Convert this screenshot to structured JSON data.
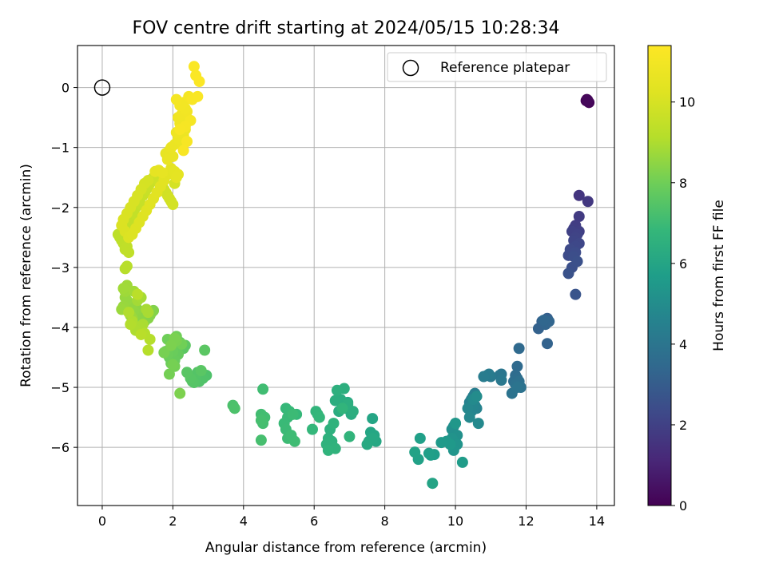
{
  "chart_data": {
    "type": "scatter",
    "title": "FOV centre drift starting at 2024/05/15 10:28:34",
    "xlabel": "Angular distance from reference (arcmin)",
    "ylabel": "Rotation from reference (arcmin)",
    "xlim": [
      -0.7,
      14.5
    ],
    "ylim": [
      -6.97,
      0.7
    ],
    "xticks": [
      0,
      2,
      4,
      6,
      8,
      10,
      12,
      14
    ],
    "xtick_labels": [
      "0",
      "2",
      "4",
      "6",
      "8",
      "10",
      "12",
      "14"
    ],
    "yticks": [
      0,
      -1,
      -2,
      -3,
      -4,
      -5,
      -6
    ],
    "ytick_labels": [
      "0",
      "−1",
      "−2",
      "−3",
      "−4",
      "−5",
      "−6"
    ],
    "grid": true,
    "colormap": "viridis",
    "colorbar": {
      "label": "Hours from first FF file",
      "range": [
        0,
        11.4
      ],
      "ticks": [
        0,
        2,
        4,
        6,
        8,
        10
      ],
      "tick_labels": [
        "0",
        "2",
        "4",
        "6",
        "8",
        "10"
      ]
    },
    "legend": {
      "position": "top-right",
      "entries": [
        "Reference platepar"
      ]
    },
    "reference_point": {
      "x": 0,
      "y": 0
    },
    "segments": [
      {
        "x": [
          13.72,
          13.78,
          13.7,
          13.76,
          13.74
        ],
        "y": [
          -0.2,
          -0.25,
          -0.22,
          -0.24,
          -0.21
        ],
        "c": [
          0.0,
          0.05,
          0.1,
          0.15,
          0.2
        ]
      },
      {
        "x": [
          13.5,
          13.75,
          13.5,
          13.4,
          13.35,
          13.5,
          13.3,
          13.45,
          13.4,
          13.35,
          13.5,
          13.4,
          13.25,
          13.2,
          13.4,
          13.35,
          13.3,
          13.45,
          13.2,
          13.4
        ],
        "y": [
          -1.8,
          -1.9,
          -2.15,
          -2.3,
          -2.35,
          -2.4,
          -2.4,
          -2.45,
          -2.5,
          -2.55,
          -2.6,
          -2.65,
          -2.7,
          -2.8,
          -2.75,
          -2.82,
          -3.0,
          -2.9,
          -3.1,
          -3.45
        ],
        "c": [
          1.6,
          1.7,
          1.8,
          1.85,
          1.9,
          1.95,
          2.0,
          2.05,
          2.1,
          2.15,
          2.2,
          2.25,
          2.3,
          2.35,
          2.4,
          2.45,
          2.5,
          2.55,
          2.6,
          2.7
        ]
      },
      {
        "x": [
          12.6,
          12.45,
          12.35,
          12.6,
          12.55,
          12.65,
          12.5
        ],
        "y": [
          -3.85,
          -3.9,
          -4.02,
          -4.27,
          -3.95,
          -3.9,
          -3.88
        ],
        "c": [
          3.1,
          3.15,
          3.2,
          3.25,
          3.3,
          3.35,
          3.4
        ]
      },
      {
        "x": [
          11.8,
          11.75,
          11.7,
          11.75,
          11.65,
          11.8,
          11.7,
          11.85,
          11.6,
          11.75,
          11.3,
          11.25,
          11.3,
          11.0,
          10.9,
          10.95,
          10.8
        ],
        "y": [
          -4.35,
          -4.65,
          -4.8,
          -4.85,
          -4.9,
          -4.9,
          -4.95,
          -5.0,
          -5.1,
          -5.0,
          -4.78,
          -4.8,
          -4.88,
          -4.82,
          -4.8,
          -4.78,
          -4.82
        ],
        "c": [
          3.5,
          3.55,
          3.6,
          3.65,
          3.7,
          3.75,
          3.8,
          3.85,
          3.9,
          3.95,
          4.0,
          4.05,
          4.1,
          4.15,
          4.2,
          4.25,
          4.3
        ]
      },
      {
        "x": [
          10.55,
          10.5,
          10.45,
          10.4,
          10.55,
          10.6,
          10.45,
          10.5,
          10.35,
          10.4,
          10.65,
          10.5,
          10.6
        ],
        "y": [
          -5.1,
          -5.15,
          -5.2,
          -5.25,
          -5.3,
          -5.35,
          -5.4,
          -5.3,
          -5.35,
          -5.5,
          -5.6,
          -5.2,
          -5.15
        ],
        "c": [
          4.35,
          4.4,
          4.45,
          4.5,
          4.55,
          4.6,
          4.65,
          4.7,
          4.75,
          4.8,
          4.85,
          4.9,
          4.95
        ]
      },
      {
        "x": [
          10.0,
          9.95,
          9.9,
          10.05,
          9.85,
          9.9,
          10.05,
          9.95,
          10.0,
          9.75,
          9.85,
          9.6,
          10.2,
          9.4,
          9.3,
          9.25,
          9.0,
          8.95,
          8.85,
          9.35
        ],
        "y": [
          -5.6,
          -5.65,
          -5.7,
          -5.8,
          -5.9,
          -5.85,
          -5.95,
          -6.05,
          -5.6,
          -5.9,
          -5.95,
          -5.92,
          -6.25,
          -6.12,
          -6.13,
          -6.1,
          -5.85,
          -6.2,
          -6.08,
          -6.6
        ],
        "c": [
          5.0,
          5.05,
          5.1,
          5.15,
          5.2,
          5.25,
          5.3,
          5.35,
          5.4,
          5.45,
          5.5,
          5.55,
          5.6,
          5.65,
          5.7,
          5.75,
          5.8,
          5.85,
          5.9,
          5.95
        ]
      },
      {
        "x": [
          7.65,
          7.6,
          7.7,
          7.55,
          7.75,
          7.65,
          7.5,
          6.95,
          6.85,
          6.8,
          6.9,
          7.05,
          6.75,
          6.7,
          6.6,
          7.1,
          6.95,
          6.85,
          6.65,
          6.45,
          6.4,
          6.5,
          6.35,
          6.55,
          6.6,
          6.4,
          7.0,
          6.8,
          6.05,
          6.1,
          6.15,
          5.95,
          5.5,
          5.2,
          5.3,
          5.25,
          5.15,
          5.2,
          5.4,
          5.25,
          5.35,
          5.45,
          4.55,
          4.5,
          4.6,
          4.55,
          4.5,
          4.5
        ],
        "y": [
          -5.52,
          -5.75,
          -5.8,
          -5.9,
          -5.9,
          -5.85,
          -5.95,
          -5.25,
          -5.3,
          -5.3,
          -5.35,
          -5.45,
          -5.2,
          -5.4,
          -5.22,
          -5.4,
          -5.28,
          -5.02,
          -5.05,
          -5.7,
          -5.85,
          -5.9,
          -5.95,
          -5.6,
          -6.02,
          -6.05,
          -5.82,
          -5.35,
          -5.4,
          -5.45,
          -5.5,
          -5.7,
          -5.45,
          -5.35,
          -5.4,
          -5.5,
          -5.6,
          -5.7,
          -5.45,
          -5.85,
          -5.8,
          -5.9,
          -5.03,
          -5.45,
          -5.5,
          -5.6,
          -5.55,
          -5.88
        ],
        "c": [
          6.0,
          6.03,
          6.06,
          6.1,
          6.12,
          6.15,
          6.18,
          6.2,
          6.22,
          6.25,
          6.28,
          6.3,
          6.32,
          6.35,
          6.38,
          6.4,
          6.42,
          6.45,
          6.48,
          6.5,
          6.52,
          6.55,
          6.58,
          6.6,
          6.62,
          6.65,
          6.68,
          6.7,
          6.72,
          6.75,
          6.78,
          6.8,
          6.82,
          6.85,
          6.88,
          6.9,
          6.92,
          6.95,
          6.98,
          7.0,
          7.02,
          7.05,
          7.08,
          7.1,
          7.12,
          7.15,
          7.18,
          7.2
        ]
      },
      {
        "x": [
          3.7,
          3.75,
          2.95,
          2.85,
          2.75,
          2.65,
          2.7,
          2.6,
          2.55,
          2.5,
          2.4,
          2.8,
          2.9,
          2.3,
          2.35,
          2.2,
          2.1,
          2.05,
          2.0,
          1.95,
          2.15,
          1.9,
          2.05,
          2.0,
          1.95,
          1.85,
          1.8,
          1.85,
          2.1,
          2.25,
          2.05,
          1.9,
          2.0,
          1.75,
          2.1,
          2.05,
          1.95,
          2.2
        ],
        "y": [
          -5.3,
          -5.35,
          -4.8,
          -4.85,
          -4.9,
          -4.88,
          -4.75,
          -4.92,
          -4.9,
          -4.85,
          -4.75,
          -4.72,
          -4.38,
          -4.35,
          -4.3,
          -4.25,
          -4.2,
          -4.3,
          -4.35,
          -4.4,
          -4.45,
          -4.5,
          -4.55,
          -4.4,
          -4.6,
          -4.45,
          -4.4,
          -4.2,
          -4.15,
          -4.28,
          -4.65,
          -4.78,
          -4.62,
          -4.42,
          -4.22,
          -4.18,
          -4.3,
          -5.1
        ],
        "c": [
          7.3,
          7.32,
          7.35,
          7.38,
          7.4,
          7.42,
          7.45,
          7.48,
          7.5,
          7.52,
          7.55,
          7.58,
          7.6,
          7.62,
          7.65,
          7.68,
          7.7,
          7.72,
          7.75,
          7.78,
          7.8,
          7.82,
          7.85,
          7.88,
          7.9,
          7.92,
          7.95,
          7.98,
          8.0,
          8.02,
          8.05,
          8.08,
          8.1,
          8.12,
          8.15,
          8.18,
          8.2,
          8.22
        ]
      },
      {
        "x": [
          1.45,
          1.4,
          1.35,
          1.3,
          1.2,
          1.1,
          1.05,
          0.95,
          1.0,
          0.9,
          0.85,
          0.75,
          0.7,
          0.65,
          0.6,
          0.55,
          0.8,
          0.85,
          0.65,
          0.7,
          0.6,
          0.9,
          1.0,
          1.1,
          1.25,
          1.3,
          1.15,
          1.05,
          0.95,
          0.85,
          0.75,
          0.8,
          1.2,
          1.35,
          1.3,
          0.65,
          0.7,
          1.1,
          1.0
        ],
        "y": [
          -3.72,
          -3.75,
          -3.8,
          -3.85,
          -3.9,
          -3.82,
          -3.85,
          -3.78,
          -3.7,
          -3.72,
          -3.65,
          -3.6,
          -3.55,
          -3.5,
          -3.65,
          -3.7,
          -3.8,
          -3.85,
          -3.4,
          -3.3,
          -3.35,
          -3.4,
          -3.55,
          -3.5,
          -3.7,
          -3.75,
          -3.95,
          -4.0,
          -4.05,
          -3.9,
          -3.75,
          -3.95,
          -4.1,
          -4.2,
          -4.38,
          -3.02,
          -2.98,
          -4.12,
          -3.45
        ],
        "c": [
          8.3,
          8.32,
          8.35,
          8.38,
          8.4,
          8.42,
          8.45,
          8.48,
          8.5,
          8.52,
          8.55,
          8.58,
          8.6,
          8.62,
          8.65,
          8.68,
          8.7,
          8.72,
          8.75,
          8.78,
          8.8,
          8.82,
          8.85,
          8.88,
          8.9,
          8.92,
          8.95,
          8.98,
          9.0,
          9.02,
          9.05,
          9.08,
          9.1,
          9.12,
          9.15,
          9.18,
          9.2,
          9.22,
          9.25
        ]
      },
      {
        "x": [
          0.5,
          0.55,
          0.45,
          0.6,
          0.65,
          0.7,
          0.75,
          0.8,
          0.85,
          0.9,
          0.95,
          1.0,
          1.05,
          1.1,
          1.15,
          1.2,
          1.25,
          1.3,
          1.35,
          1.4,
          1.45,
          1.5,
          1.55,
          1.6,
          1.65,
          1.7,
          1.75,
          1.8,
          1.85,
          1.9,
          1.95,
          2.0,
          2.05,
          1.3,
          1.2,
          1.1,
          1.0,
          0.9,
          0.8,
          0.7,
          0.6,
          0.55,
          0.65,
          0.75,
          0.85,
          0.95,
          1.05,
          1.15,
          1.25,
          1.35,
          1.45,
          1.55,
          1.65,
          1.75,
          1.85,
          1.95,
          2.05,
          2.15,
          2.1,
          1.5,
          1.6,
          1.7
        ],
        "y": [
          -2.5,
          -2.55,
          -2.45,
          -2.6,
          -2.7,
          -2.65,
          -2.75,
          -2.3,
          -2.2,
          -2.1,
          -2.0,
          -1.9,
          -1.85,
          -1.95,
          -1.8,
          -1.75,
          -1.7,
          -1.65,
          -1.6,
          -1.55,
          -1.5,
          -1.45,
          -1.5,
          -1.55,
          -1.6,
          -1.65,
          -1.7,
          -1.75,
          -1.8,
          -1.85,
          -1.9,
          -1.95,
          -1.6,
          -1.55,
          -1.6,
          -1.7,
          -1.8,
          -1.9,
          -2.0,
          -2.1,
          -2.2,
          -2.3,
          -2.4,
          -2.5,
          -2.45,
          -2.35,
          -2.25,
          -2.15,
          -2.05,
          -1.95,
          -1.85,
          -1.75,
          -1.65,
          -1.55,
          -1.45,
          -1.35,
          -1.4,
          -1.45,
          -1.5,
          -1.4,
          -1.38,
          -1.42
        ],
        "c": [
          9.3,
          9.32,
          9.34,
          9.36,
          9.38,
          9.4,
          9.42,
          9.44,
          9.46,
          9.48,
          9.5,
          9.52,
          9.54,
          9.56,
          9.58,
          9.6,
          9.62,
          9.64,
          9.66,
          9.68,
          9.7,
          9.72,
          9.74,
          9.76,
          9.78,
          9.8,
          9.82,
          9.84,
          9.86,
          9.88,
          9.9,
          9.92,
          9.94,
          9.96,
          9.98,
          10.0,
          10.02,
          10.04,
          10.06,
          10.08,
          10.1,
          10.12,
          10.14,
          10.16,
          10.18,
          10.2,
          10.22,
          10.24,
          10.26,
          10.28,
          10.3,
          10.32,
          10.34,
          10.36,
          10.38,
          10.4,
          10.42,
          10.44,
          10.46,
          10.48,
          10.5,
          10.52
        ]
      },
      {
        "x": [
          1.8,
          1.9,
          2.0,
          1.85,
          1.95,
          2.05,
          2.2,
          2.15,
          2.3,
          2.25,
          2.35,
          2.1,
          2.2,
          2.3,
          2.15,
          2.25,
          2.4,
          2.35,
          2.2,
          2.3,
          2.1,
          2.45,
          2.5,
          2.35,
          2.2,
          2.4,
          2.3,
          2.55,
          2.7,
          2.6,
          2.65,
          2.75
        ],
        "y": [
          -1.1,
          -1.05,
          -1.15,
          -1.2,
          -1.0,
          -0.95,
          -0.9,
          -0.85,
          -0.8,
          -0.75,
          -0.7,
          -0.75,
          -0.6,
          -0.55,
          -0.5,
          -0.45,
          -0.4,
          -0.35,
          -0.3,
          -0.25,
          -0.2,
          -0.15,
          -0.55,
          -0.65,
          -0.7,
          -0.9,
          -1.05,
          -0.2,
          -0.15,
          0.35,
          0.2,
          0.1
        ],
        "c": [
          10.55,
          10.58,
          10.6,
          10.62,
          10.65,
          10.68,
          10.7,
          10.72,
          10.75,
          10.78,
          10.8,
          10.82,
          10.85,
          10.88,
          10.9,
          10.92,
          10.95,
          10.98,
          11.0,
          11.02,
          11.05,
          11.08,
          11.1,
          11.12,
          11.15,
          11.18,
          11.2,
          11.22,
          11.25,
          11.28,
          11.3,
          11.32
        ]
      }
    ]
  }
}
